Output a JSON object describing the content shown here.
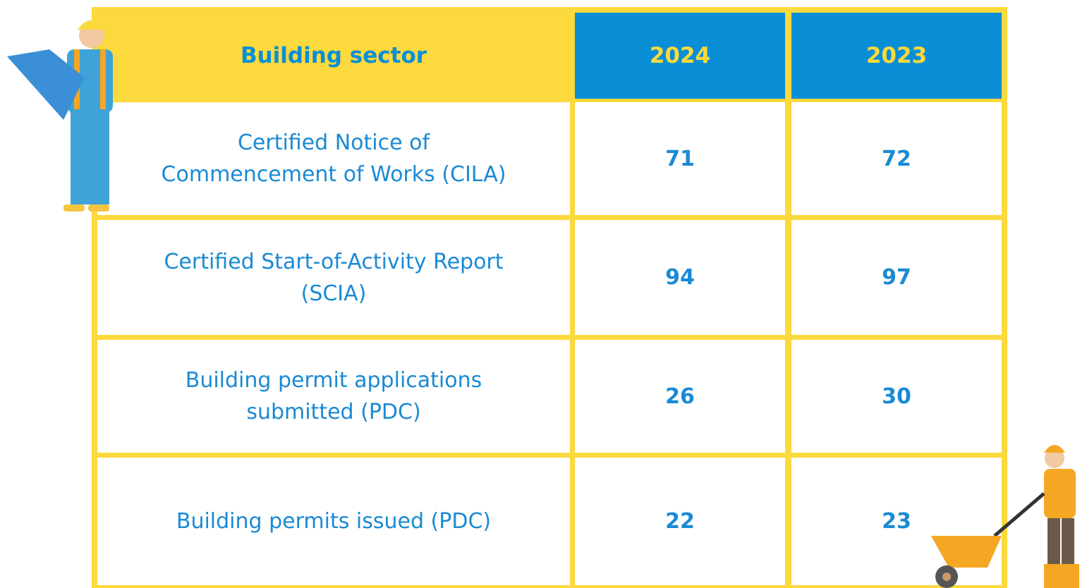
{
  "header": {
    "title": "Building sector",
    "columns": [
      "2024",
      "2023"
    ]
  },
  "table": {
    "rows": [
      {
        "label": "Certified Notice of Commencement of Works (CILA)",
        "values": [
          71,
          72
        ]
      },
      {
        "label": "Certified Start-of-Activity Report (SCIA)",
        "values": [
          94,
          97
        ]
      },
      {
        "label": "Building permit applications submitted (PDC)",
        "values": [
          26,
          30
        ]
      },
      {
        "label": "Building permits issued (PDC)",
        "values": [
          22,
          23
        ]
      }
    ]
  }
}
